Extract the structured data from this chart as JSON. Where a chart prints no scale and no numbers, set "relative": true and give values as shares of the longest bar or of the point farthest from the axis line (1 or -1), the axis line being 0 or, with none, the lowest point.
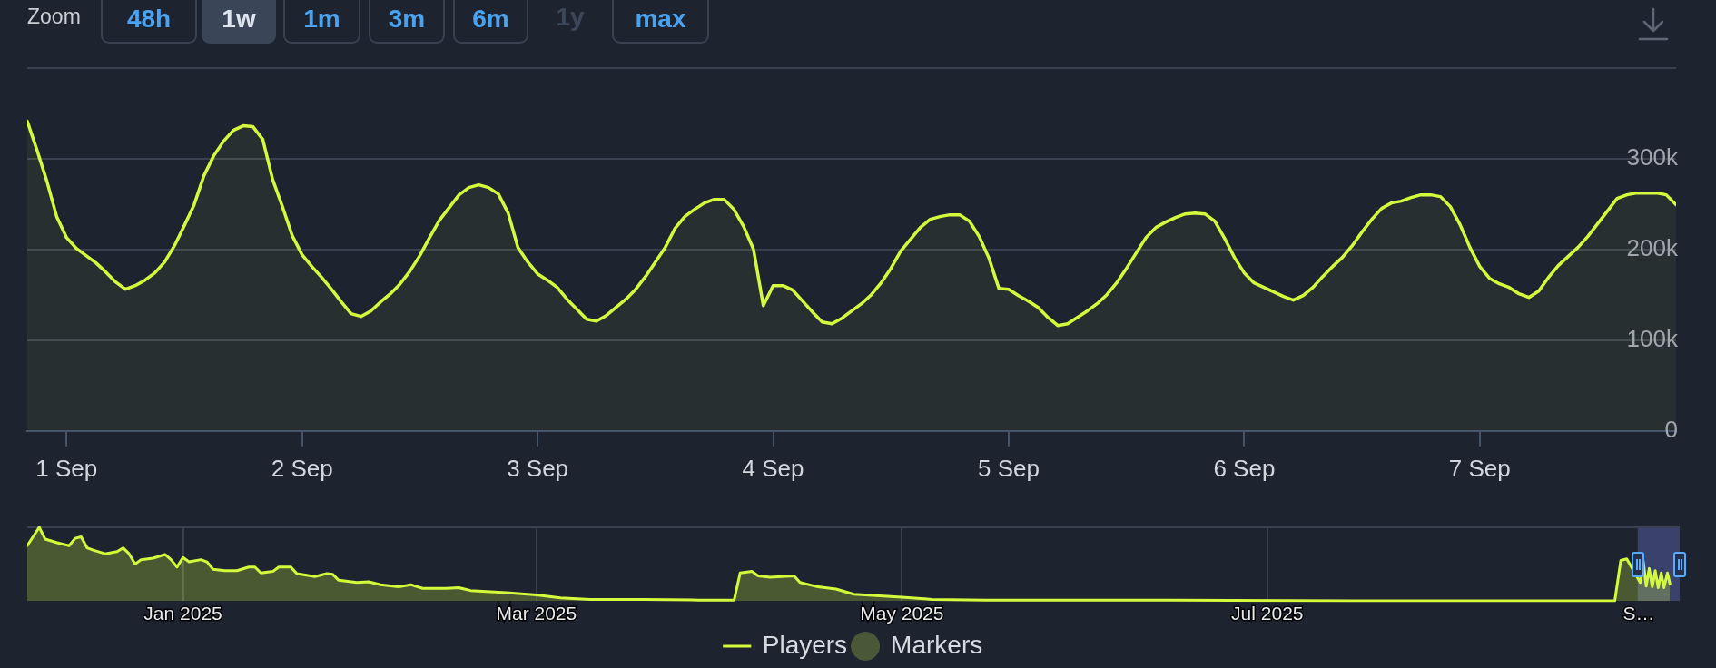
{
  "chart_data": [
    {
      "type": "other",
      "annotations": [
        "Zoom",
        "48h",
        "1w",
        "1m",
        "3m",
        "6m",
        "1y",
        "max"
      ]
    },
    {
      "type": "area",
      "x": [
        "--08-31T20:00",
        "--08-31T21:00",
        "--08-31T22:00",
        "--08-31T23:00",
        "--09-01T00:00",
        "--09-01T01:00",
        "--09-01T02:00",
        "--09-01T03:00",
        "--09-01T04:00",
        "--09-01T05:00",
        "--09-01T06:00",
        "--09-01T07:00",
        "--09-01T08:00",
        "--09-01T09:00",
        "--09-01T10:00",
        "--09-01T11:00",
        "--09-01T12:00",
        "--09-01T13:00",
        "--09-01T14:00",
        "--09-01T15:00",
        "--09-01T16:00",
        "--09-01T17:00",
        "--09-01T18:00",
        "--09-01T19:00",
        "--09-01T20:00",
        "--09-01T21:00",
        "--09-01T22:00",
        "--09-01T23:00",
        "--09-02T00:00",
        "--09-02T01:00",
        "--09-02T02:00",
        "--09-02T03:00",
        "--09-02T04:00",
        "--09-02T05:00",
        "--09-02T06:00",
        "--09-02T07:00",
        "--09-02T08:00",
        "--09-02T09:00",
        "--09-02T10:00",
        "--09-02T11:00",
        "--09-02T12:00",
        "--09-02T13:00",
        "--09-02T14:00",
        "--09-02T15:00",
        "--09-02T16:00",
        "--09-02T17:00",
        "--09-02T18:00",
        "--09-02T19:00",
        "--09-02T20:00",
        "--09-02T21:00",
        "--09-02T22:00",
        "--09-02T23:00",
        "--09-03T00:00",
        "--09-03T01:00",
        "--09-03T02:00",
        "--09-03T03:00",
        "--09-03T04:00",
        "--09-03T05:00",
        "--09-03T06:00",
        "--09-03T07:00",
        "--09-03T08:00",
        "--09-03T09:00",
        "--09-03T10:00",
        "--09-03T11:00",
        "--09-03T12:00",
        "--09-03T13:00",
        "--09-03T14:00",
        "--09-03T15:00",
        "--09-03T16:00",
        "--09-03T17:00",
        "--09-03T18:00",
        "--09-03T19:00",
        "--09-03T20:00",
        "--09-03T21:00",
        "--09-03T22:00",
        "--09-03T23:00",
        "--09-04T00:00",
        "--09-04T01:00",
        "--09-04T02:00",
        "--09-04T03:00",
        "--09-04T04:00",
        "--09-04T05:00",
        "--09-04T06:00",
        "--09-04T07:00",
        "--09-04T08:00",
        "--09-04T09:00",
        "--09-04T10:00",
        "--09-04T11:00",
        "--09-04T12:00",
        "--09-04T13:00",
        "--09-04T14:00",
        "--09-04T15:00",
        "--09-04T16:00",
        "--09-04T17:00",
        "--09-04T18:00",
        "--09-04T19:00",
        "--09-04T20:00",
        "--09-04T21:00",
        "--09-04T22:00",
        "--09-04T23:00",
        "--09-05T00:00",
        "--09-05T01:00",
        "--09-05T02:00",
        "--09-05T03:00",
        "--09-05T04:00",
        "--09-05T05:00",
        "--09-05T06:00",
        "--09-05T07:00",
        "--09-05T08:00",
        "--09-05T09:00",
        "--09-05T10:00",
        "--09-05T11:00",
        "--09-05T12:00",
        "--09-05T13:00",
        "--09-05T14:00",
        "--09-05T15:00",
        "--09-05T16:00",
        "--09-05T17:00",
        "--09-05T18:00",
        "--09-05T19:00",
        "--09-05T20:00",
        "--09-05T21:00",
        "--09-05T22:00",
        "--09-05T23:00",
        "--09-06T00:00",
        "--09-06T01:00",
        "--09-06T02:00",
        "--09-06T03:00",
        "--09-06T04:00",
        "--09-06T05:00",
        "--09-06T06:00",
        "--09-06T07:00",
        "--09-06T08:00",
        "--09-06T09:00",
        "--09-06T10:00",
        "--09-06T11:00",
        "--09-06T12:00",
        "--09-06T13:00",
        "--09-06T14:00",
        "--09-06T15:00",
        "--09-06T16:00",
        "--09-06T17:00",
        "--09-06T18:00",
        "--09-06T19:00",
        "--09-06T20:00",
        "--09-06T21:00",
        "--09-06T22:00",
        "--09-06T23:00",
        "--09-07T00:00",
        "--09-07T01:00",
        "--09-07T02:00",
        "--09-07T03:00",
        "--09-07T04:00",
        "--09-07T05:00",
        "--09-07T06:00",
        "--09-07T07:00",
        "--09-07T08:00",
        "--09-07T09:00",
        "--09-07T10:00",
        "--09-07T11:00",
        "--09-07T12:00",
        "--09-07T13:00",
        "--09-07T14:00",
        "--09-07T15:00",
        "--09-07T16:00",
        "--09-07T17:00",
        "--09-07T18:00",
        "--09-07T19:00",
        "--09-07T20:00"
      ],
      "series": [
        {
          "color": "#d4fa3c",
          "values": [
            341000,
            309000,
            275000,
            236000,
            213000,
            201000,
            193000,
            185000,
            175000,
            164000,
            156000,
            160000,
            166000,
            174000,
            186000,
            204000,
            226000,
            249000,
            281000,
            303000,
            319000,
            331000,
            336000,
            335000,
            321000,
            277000,
            247000,
            215000,
            194000,
            181000,
            169000,
            156000,
            142000,
            129000,
            126000,
            132000,
            142000,
            151000,
            162000,
            176000,
            193000,
            213000,
            232000,
            246000,
            260000,
            268000,
            271000,
            268000,
            261000,
            240000,
            202000,
            186000,
            173000,
            166000,
            158000,
            145000,
            134000,
            123000,
            121000,
            127000,
            136000,
            145000,
            156000,
            170000,
            186000,
            202000,
            223000,
            236000,
            244000,
            251000,
            255000,
            255000,
            244000,
            225000,
            200000,
            138000,
            160000,
            160000,
            155000,
            143000,
            131000,
            120000,
            118000,
            124000,
            132000,
            140000,
            150000,
            163000,
            179000,
            198000,
            211000,
            224000,
            233000,
            236000,
            238000,
            238000,
            231000,
            214000,
            190000,
            157000,
            156000,
            149000,
            143000,
            136000,
            125000,
            116000,
            118000,
            125000,
            132000,
            140000,
            150000,
            163000,
            179000,
            196000,
            213000,
            224000,
            230000,
            235000,
            239000,
            240000,
            239000,
            231000,
            212000,
            191000,
            174000,
            163000,
            158000,
            153000,
            148000,
            144000,
            149000,
            158000,
            170000,
            181000,
            191000,
            204000,
            219000,
            233000,
            245000,
            251000,
            253000,
            257000,
            260000,
            260000,
            258000,
            247000,
            227000,
            202000,
            181000,
            168000,
            162000,
            158000,
            151000,
            147000,
            154000,
            169000,
            182000,
            192000,
            202000,
            214000,
            228000,
            242000,
            256000,
            260000,
            262000,
            262000,
            262000,
            260000,
            249000
          ]
        }
      ],
      "xlim": [
        "--08-31T20:00",
        "--09-07T20:00"
      ],
      "xticks": [
        {
          "value": "--09-01",
          "label": "1 Sep"
        },
        {
          "value": "--09-02",
          "label": "2 Sep"
        },
        {
          "value": "--09-03",
          "label": "3 Sep"
        },
        {
          "value": "--09-04",
          "label": "4 Sep"
        },
        {
          "value": "--09-05",
          "label": "5 Sep"
        },
        {
          "value": "--09-06",
          "label": "6 Sep"
        },
        {
          "value": "--09-07",
          "label": "7 Sep"
        }
      ],
      "ylim": [
        0,
        400000
      ],
      "yticks": [
        0,
        {
          "value": 100000,
          "label": "100k"
        },
        {
          "value": 200000,
          "label": "200k"
        },
        {
          "value": 300000,
          "label": "300k"
        },
        {
          "value": 400000,
          "label": null
        }
      ],
      "grid": "y"
    },
    {
      "type": "area",
      "relative": true,
      "series": [
        {
          "name": "Players",
          "color": "#d4fa3c",
          "x": [
            "2024-12-06",
            "2024-12-08",
            "2024-12-09",
            "2024-12-11",
            "2024-12-13",
            "2024-12-14",
            "2024-12-15",
            "2024-12-16",
            "2024-12-17",
            "2024-12-19",
            "2024-12-21",
            "2024-12-22",
            "2024-12-23",
            "2024-12-24",
            "2024-12-25",
            "2024-12-27",
            "2024-12-29",
            "2024-12-30",
            "2024-12-31",
            "2025-01-01",
            "2025-01-02",
            "2025-01-04",
            "2025-01-05",
            "2025-01-06",
            "2025-01-08",
            "2025-01-10",
            "2025-01-12",
            "2025-01-13",
            "2025-01-14",
            "2025-01-16",
            "2025-01-17",
            "2025-01-19",
            "2025-01-20",
            "2025-01-23",
            "2025-01-25",
            "2025-01-26",
            "2025-01-27",
            "2025-01-30",
            "2025-02-01",
            "2025-02-03",
            "2025-02-06",
            "2025-02-08",
            "2025-02-10",
            "2025-02-14",
            "2025-02-16",
            "2025-02-18",
            "2025-02-22",
            "2025-02-24",
            "2025-03-01",
            "2025-03-05",
            "2025-03-10",
            "2025-03-19",
            "2025-03-28",
            "2025-04-03",
            "2025-04-04",
            "2025-04-06",
            "2025-04-07",
            "2025-04-09",
            "2025-04-13",
            "2025-04-14",
            "2025-04-17",
            "2025-04-20",
            "2025-04-23",
            "2025-05-01",
            "2025-05-06",
            "2025-05-15",
            "2025-06-15",
            "2025-07-15",
            "2025-08-28",
            "2025-08-29",
            "2025-08-30",
            "2025-09-01T06:00",
            "2025-09-01T18:00",
            "2025-09-02T06:00",
            "2025-09-02T18:00",
            "2025-09-03T06:00",
            "2025-09-03T18:00",
            "2025-09-04T06:00",
            "2025-09-04T18:00",
            "2025-09-05T05:00",
            "2025-09-05T19:00",
            "2025-09-06T05:00"
          ],
          "values": [
            0.75,
            1,
            0.84,
            0.79,
            0.75,
            0.85,
            0.87,
            0.72,
            0.69,
            0.64,
            0.67,
            0.72,
            0.64,
            0.5,
            0.56,
            0.58,
            0.63,
            0.56,
            0.46,
            0.59,
            0.53,
            0.56,
            0.53,
            0.43,
            0.41,
            0.41,
            0.46,
            0.46,
            0.38,
            0.4,
            0.46,
            0.46,
            0.37,
            0.33,
            0.37,
            0.36,
            0.28,
            0.25,
            0.26,
            0.22,
            0.19,
            0.22,
            0.17,
            0.17,
            0.18,
            0.14,
            0.12,
            0.11,
            0.08,
            0.04,
            0.02,
            0.02,
            0.01,
            0.01,
            0.38,
            0.4,
            0.34,
            0.32,
            0.34,
            0.25,
            0.19,
            0.16,
            0.09,
            0.05,
            0.02,
            0.01,
            0.01,
            0,
            0,
            0.55,
            0.57,
            0.25,
            0.54,
            0.2,
            0.44,
            0.19,
            0.41,
            0.18,
            0.38,
            0.18,
            0.38,
            0.23
          ]
        },
        {
          "name": "Markers",
          "type": "scatter",
          "color": "#4a5838"
        }
      ],
      "xlim": [
        "2024-12-06",
        "2025-09-07T20:00"
      ],
      "xticks": [
        {
          "value": "2025-01-01",
          "label": "Jan 2025"
        },
        {
          "value": "2025-03-01",
          "label": "Mar 2025"
        },
        {
          "value": "2025-05-01",
          "label": "May 2025"
        },
        {
          "value": "2025-07-01",
          "label": "Jul 2025"
        },
        {
          "value": "2025-09-01",
          "label": "S…"
        }
      ],
      "grid": "x",
      "legend": "bottom",
      "bands": [
        {
          "axis": "x",
          "from": "2025-08-31T20:00",
          "to": "2025-09-07T20:00",
          "color": "#3a416b"
        }
      ]
    }
  ]
}
